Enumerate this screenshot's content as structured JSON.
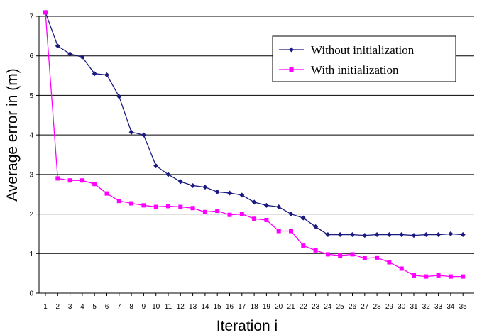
{
  "chart_data": {
    "type": "line",
    "xlabel": "Iteration i",
    "ylabel": "Average error in (m)",
    "x": [
      1,
      2,
      3,
      4,
      5,
      6,
      7,
      8,
      9,
      10,
      11,
      12,
      13,
      14,
      15,
      16,
      17,
      18,
      19,
      20,
      21,
      22,
      23,
      24,
      25,
      26,
      27,
      28,
      29,
      30,
      31,
      32,
      33,
      34,
      35
    ],
    "ylim": [
      0,
      7
    ],
    "yticks": [
      0,
      1,
      2,
      3,
      4,
      5,
      6,
      7
    ],
    "grid": true,
    "legend_position": "top-right",
    "series": [
      {
        "name": "Without initialization",
        "color": "#1a1a80",
        "marker": "diamond",
        "values": [
          7.1,
          6.25,
          6.05,
          5.97,
          5.55,
          5.52,
          4.97,
          4.07,
          4.0,
          3.22,
          3.0,
          2.82,
          2.72,
          2.68,
          2.56,
          2.53,
          2.48,
          2.3,
          2.22,
          2.18,
          2.0,
          1.9,
          1.68,
          1.48,
          1.48,
          1.48,
          1.46,
          1.48,
          1.48,
          1.48,
          1.46,
          1.48,
          1.48,
          1.5,
          1.48
        ]
      },
      {
        "name": "With initialization",
        "color": "#ff00ff",
        "marker": "square",
        "values": [
          7.1,
          2.9,
          2.85,
          2.85,
          2.76,
          2.52,
          2.33,
          2.27,
          2.22,
          2.18,
          2.2,
          2.18,
          2.15,
          2.05,
          2.08,
          1.98,
          2.0,
          1.88,
          1.85,
          1.57,
          1.57,
          1.2,
          1.08,
          0.98,
          0.95,
          0.98,
          0.88,
          0.9,
          0.78,
          0.62,
          0.45,
          0.42,
          0.45,
          0.42,
          0.42
        ]
      }
    ]
  }
}
